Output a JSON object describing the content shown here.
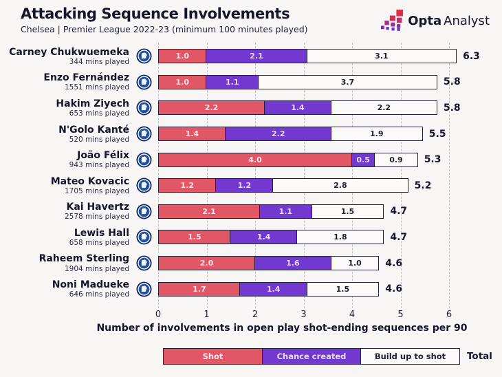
{
  "header": {
    "title": "Attacking Sequence Involvements",
    "subtitle": "Chelsea | Premier League 2022-23 (minimum 100 minutes played)",
    "brand_bold": "Opta",
    "brand_light": "Analyst"
  },
  "chart_data": {
    "type": "bar",
    "orientation": "horizontal",
    "stacked": true,
    "title": "Attacking Sequence Involvements",
    "subtitle": "Chelsea | Premier League 2022-23 (minimum 100 minutes played)",
    "xlabel": "Number of involvements in open play shot-ending sequences per 90",
    "xlim": [
      0,
      6.5
    ],
    "x_ticks": [
      "0",
      "1",
      "2",
      "3",
      "4",
      "5",
      "6"
    ],
    "grid": "dashed-vertical",
    "series_names": [
      "Shot",
      "Chance created",
      "Build up to shot"
    ],
    "legend": [
      {
        "label": "Shot",
        "color": "#e15766"
      },
      {
        "label": "Chance created",
        "color": "#7238cf"
      },
      {
        "label": "Build up to shot",
        "color": "#fbfaf8"
      }
    ],
    "legend_total_label": "Total",
    "rows": [
      {
        "player": "Carney Chukwuemeka",
        "mins": "344 mins played",
        "shot": "1.0",
        "chance": "2.1",
        "buildup": "3.1",
        "total": "6.3"
      },
      {
        "player": "Enzo Fernández",
        "mins": "1551 mins played",
        "shot": "1.0",
        "chance": "1.1",
        "buildup": "3.7",
        "total": "5.8"
      },
      {
        "player": "Hakim Ziyech",
        "mins": "653 mins played",
        "shot": "2.2",
        "chance": "1.4",
        "buildup": "2.2",
        "total": "5.8"
      },
      {
        "player": "N'Golo Kanté",
        "mins": "520 mins played",
        "shot": "1.4",
        "chance": "2.2",
        "buildup": "1.9",
        "total": "5.5"
      },
      {
        "player": "João Félix",
        "mins": "943 mins played",
        "shot": "4.0",
        "chance": "0.5",
        "buildup": "0.9",
        "total": "5.3"
      },
      {
        "player": "Mateo Kovacic",
        "mins": "1705 mins played",
        "shot": "1.2",
        "chance": "1.2",
        "buildup": "2.8",
        "total": "5.2"
      },
      {
        "player": "Kai Havertz",
        "mins": "2578 mins played",
        "shot": "2.1",
        "chance": "1.1",
        "buildup": "1.5",
        "total": "4.7"
      },
      {
        "player": "Lewis Hall",
        "mins": "658 mins played",
        "shot": "1.5",
        "chance": "1.4",
        "buildup": "1.8",
        "total": "4.7"
      },
      {
        "player": "Raheem Sterling",
        "mins": "1904 mins played",
        "shot": "2.0",
        "chance": "1.6",
        "buildup": "1.0",
        "total": "4.6"
      },
      {
        "player": "Noni Madueke",
        "mins": "646 mins played",
        "shot": "1.7",
        "chance": "1.4",
        "buildup": "1.5",
        "total": "4.6"
      }
    ]
  },
  "colors": {
    "background": "#f8f6f4",
    "shot": "#e15766",
    "chance_created": "#7238cf",
    "build_up": "#fbfaf8",
    "bar_border": "#21213a",
    "text": "#15152b",
    "gridline": "#c2c2c4",
    "badge_navy": "#10265e",
    "badge_blue": "#1e4fa0"
  }
}
